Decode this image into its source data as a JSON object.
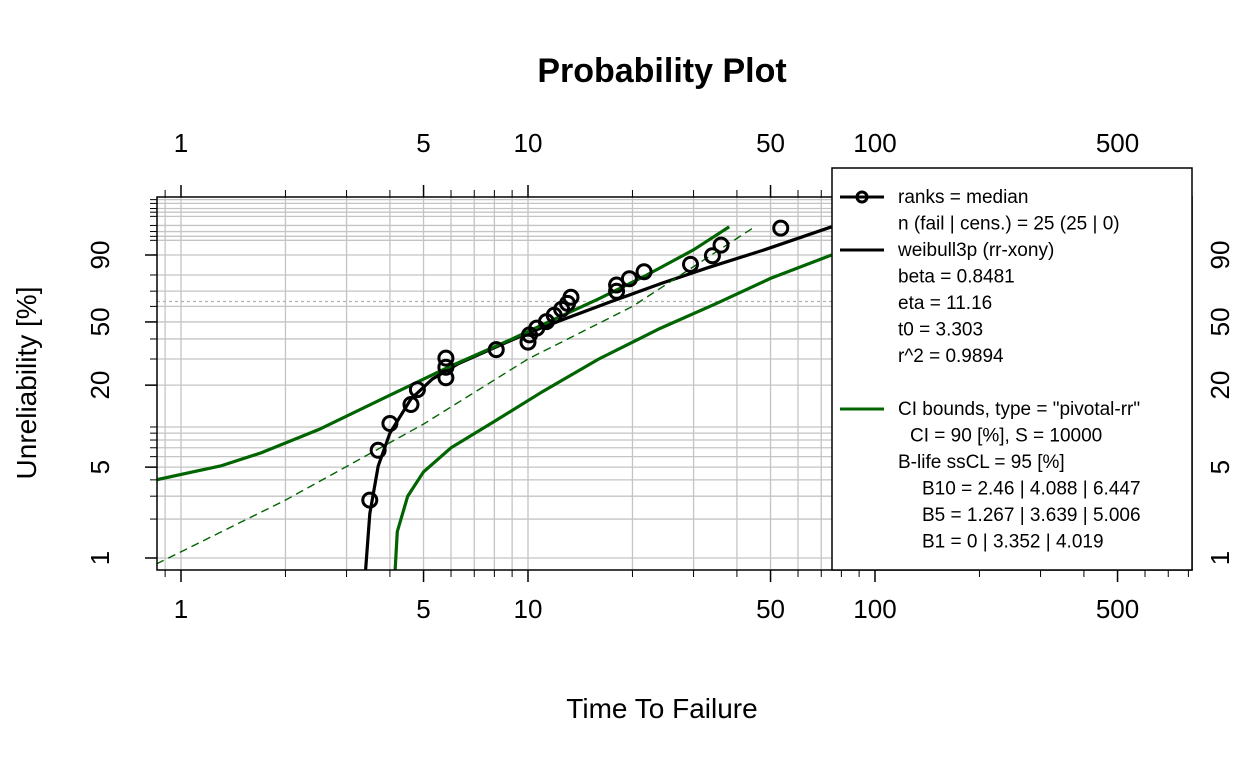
{
  "chart_data": {
    "type": "scatter",
    "title": "Probability Plot",
    "xlabel": "Time To Failure",
    "ylabel": "Unreliability [%]",
    "x_scale": "log",
    "x_range": [
      0.85,
      680
    ],
    "y_scale": "weibull",
    "y_range_percent": [
      0.5,
      99.99
    ],
    "grid": true,
    "legend_position": "right",
    "x_ticks": [
      {
        "value": 1,
        "label": "1"
      },
      {
        "value": 5,
        "label": "5"
      },
      {
        "value": 10,
        "label": "10"
      },
      {
        "value": 50,
        "label": "50"
      },
      {
        "value": 100,
        "label": "100"
      },
      {
        "value": 500,
        "label": "500"
      }
    ],
    "y_ticks": [
      {
        "value": 1,
        "label": "1"
      },
      {
        "value": 5,
        "label": "5"
      },
      {
        "value": 20,
        "label": "20"
      },
      {
        "value": 50,
        "label": "50"
      },
      {
        "value": 90,
        "label": "90"
      }
    ],
    "reference_line_percent": 63.2,
    "points": [
      {
        "x": 3.5,
        "y": 2.8
      },
      {
        "x": 3.7,
        "y": 6.7
      },
      {
        "x": 4.0,
        "y": 10.6
      },
      {
        "x": 4.6,
        "y": 14.6
      },
      {
        "x": 4.8,
        "y": 18.6
      },
      {
        "x": 5.8,
        "y": 22.5
      },
      {
        "x": 5.8,
        "y": 26.5
      },
      {
        "x": 5.8,
        "y": 30.4
      },
      {
        "x": 8.1,
        "y": 34.4
      },
      {
        "x": 10.0,
        "y": 38.3
      },
      {
        "x": 10.1,
        "y": 42.3
      },
      {
        "x": 10.6,
        "y": 46.2
      },
      {
        "x": 11.3,
        "y": 50.2
      },
      {
        "x": 11.9,
        "y": 54.2
      },
      {
        "x": 12.5,
        "y": 58.1
      },
      {
        "x": 13.0,
        "y": 62.0
      },
      {
        "x": 13.3,
        "y": 66.0
      },
      {
        "x": 18.0,
        "y": 69.9
      },
      {
        "x": 18.0,
        "y": 73.9
      },
      {
        "x": 19.6,
        "y": 77.8
      },
      {
        "x": 21.6,
        "y": 81.8
      },
      {
        "x": 29.4,
        "y": 85.7
      },
      {
        "x": 34.0,
        "y": 89.7
      },
      {
        "x": 36.0,
        "y": 93.6
      },
      {
        "x": 53.5,
        "y": 97.6
      }
    ],
    "series": [
      {
        "name": "weibull3p (rr-xony)",
        "color": "#000000",
        "style": "solid",
        "x": [
          3.36,
          3.5,
          3.7,
          4.0,
          4.6,
          5.3,
          6.3,
          7.9,
          9.9,
          12.8,
          17.3,
          24.3,
          33.0,
          48.0,
          75.0
        ],
        "y": [
          0.5,
          2.2,
          5.1,
          9.0,
          16.0,
          22.0,
          28.0,
          35.0,
          43.0,
          52.0,
          63.0,
          75.0,
          84.0,
          92.0,
          97.8
        ]
      },
      {
        "name": "CI upper",
        "color": "#006400",
        "style": "solid",
        "x": [
          0.85,
          1.0,
          1.3,
          1.7,
          2.5,
          4.0,
          6.0,
          9.0,
          12.0,
          16.0,
          22.0,
          30.0,
          38.0
        ],
        "y": [
          4.0,
          4.4,
          5.1,
          6.4,
          9.6,
          17.0,
          27.0,
          40.0,
          52.0,
          65.0,
          80.0,
          92.0,
          97.8
        ]
      },
      {
        "name": "CI lower",
        "color": "#006400",
        "style": "solid",
        "x": [
          4.1,
          4.2,
          4.5,
          5.0,
          6.0,
          8.0,
          11.0,
          16.0,
          24.0,
          35.0,
          50.0,
          75.0
        ],
        "y": [
          0.5,
          1.6,
          3.0,
          4.6,
          7.0,
          11.0,
          18.0,
          30.0,
          46.0,
          62.0,
          78.0,
          90.0
        ]
      },
      {
        "name": "2p reference",
        "color": "#006400",
        "style": "dashed",
        "x": [
          0.85,
          2.0,
          5.0,
          10.0,
          20.0,
          45.0
        ],
        "y": [
          0.9,
          2.8,
          10.5,
          30.0,
          60.0,
          97.8
        ]
      }
    ],
    "legend": {
      "point_series_label": "ranks = median",
      "lines": [
        {
          "text": "ranks = median",
          "marker": "line-point",
          "color": "#000000"
        },
        {
          "text": "n (fail | cens.) = 25 (25 | 0)",
          "marker": "none"
        },
        {
          "text": "weibull3p (rr-xony)",
          "marker": "line",
          "color": "#000000"
        },
        {
          "text": "beta = 0.8481",
          "marker": "none"
        },
        {
          "text": "eta = 11.16",
          "marker": "none"
        },
        {
          "text": "t0 = 3.303",
          "marker": "none"
        },
        {
          "text": "r^2 = 0.9894",
          "marker": "none"
        },
        {
          "text": "",
          "marker": "none"
        },
        {
          "text": "CI bounds, type = \"pivotal-rr\"",
          "marker": "line",
          "color": "#006400"
        },
        {
          "text": "CI = 90 [%], S = 10000",
          "marker": "none",
          "indent": 1
        },
        {
          "text": "B-life ssCL = 95 [%]",
          "marker": "none"
        },
        {
          "text": "B10 = 2.46 | 4.088 | 6.447",
          "marker": "none",
          "indent": 2
        },
        {
          "text": "B5 = 1.267 | 3.639 | 5.006",
          "marker": "none",
          "indent": 2
        },
        {
          "text": "B1 = 0 | 3.352 | 4.019",
          "marker": "none",
          "indent": 2
        }
      ]
    }
  }
}
